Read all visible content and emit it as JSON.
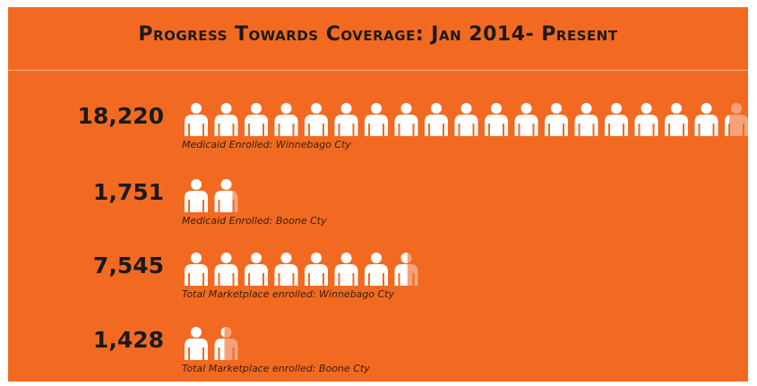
{
  "title": "Progress Towards Coverage: Jan 2014- Present",
  "colors": {
    "background": "#f26a21",
    "icon": "#ffffff",
    "icon_partial": "#f5a27a",
    "text": "#1a1a1a"
  },
  "chart_data": {
    "type": "bar",
    "title": "Progress Towards Coverage: Jan 2014- Present",
    "icon": "person-icon",
    "people_per_icon": 1000,
    "categories": [
      "Medicaid Enrolled: Winnebago Cty",
      "Medicaid Enrolled: Boone Cty",
      "Total Marketplace enrolled: Winnebago Cty",
      "Total Marketplace enrolled: Boone Cty"
    ],
    "value_labels": [
      "18,220",
      "1,751",
      "7,545",
      "1,428"
    ],
    "values": [
      18220,
      1751,
      7545,
      1428
    ]
  }
}
